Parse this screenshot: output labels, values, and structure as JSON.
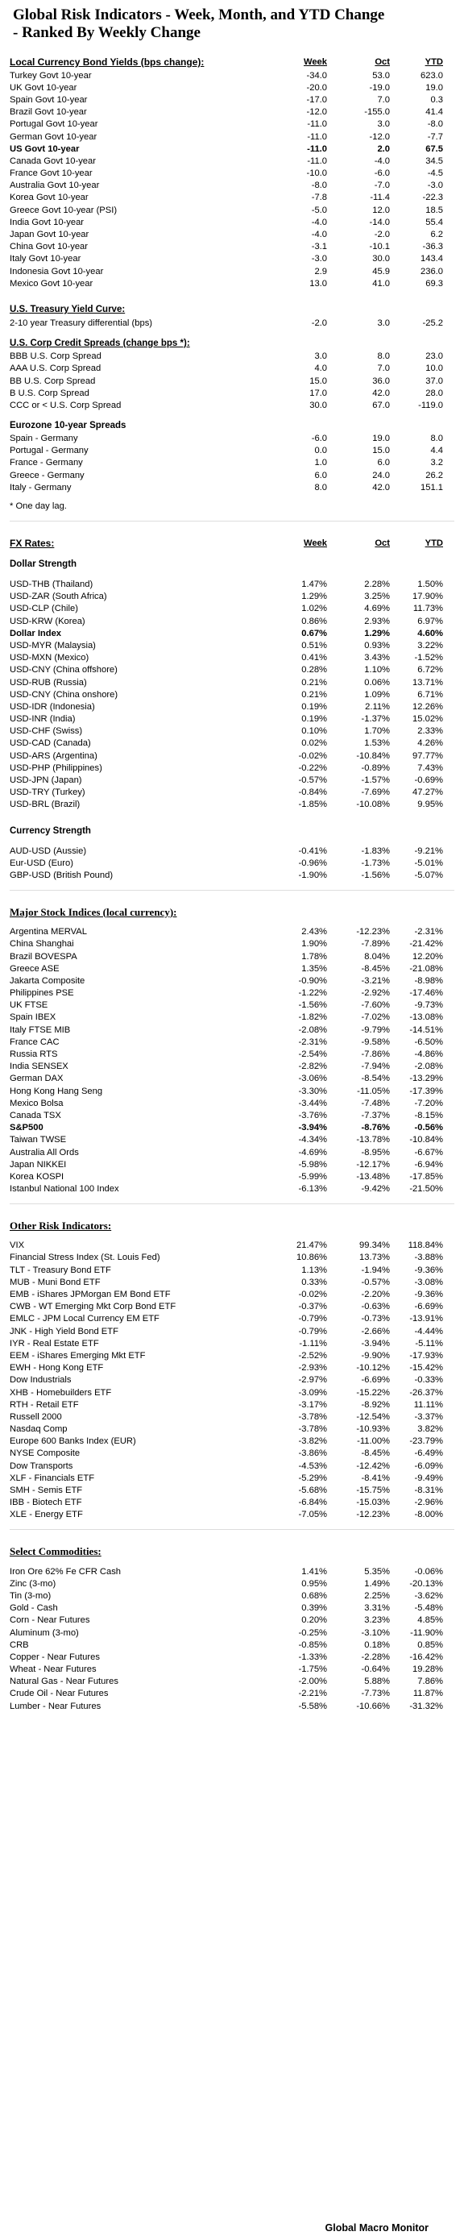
{
  "title_line1": "Global Risk Indicators - Week, Month, and YTD Change",
  "title_line2": "- Ranked By Weekly Change",
  "col_week": "Week",
  "col_oct": "Oct",
  "col_ytd": "YTD",
  "bonds_header": "Local Currency Bond Yields (bps change):",
  "bonds": [
    [
      "Turkey Govt 10-year",
      "-34.0",
      "53.0",
      "623.0"
    ],
    [
      "UK Govt 10-year",
      "-20.0",
      "-19.0",
      "19.0"
    ],
    [
      "Spain Govt 10-year",
      "-17.0",
      "7.0",
      "0.3"
    ],
    [
      "Brazil Govt 10-year",
      "-12.0",
      "-155.0",
      "41.4"
    ],
    [
      "Portugal Govt 10-year",
      "-11.0",
      "3.0",
      "-8.0"
    ],
    [
      "German Govt 10-year",
      "-11.0",
      "-12.0",
      "-7.7"
    ],
    [
      "US Govt 10-year",
      "-11.0",
      "2.0",
      "67.5"
    ],
    [
      "Canada Govt 10-year",
      "-11.0",
      "-4.0",
      "34.5"
    ],
    [
      "France Govt 10-year",
      "-10.0",
      "-6.0",
      "-4.5"
    ],
    [
      "Australia Govt 10-year",
      "-8.0",
      "-7.0",
      "-3.0"
    ],
    [
      "Korea Govt 10-year",
      "-7.8",
      "-11.4",
      "-22.3"
    ],
    [
      "Greece Govt 10-year (PSI)",
      "-5.0",
      "12.0",
      "18.5"
    ],
    [
      "India Govt 10-year",
      "-4.0",
      "-14.0",
      "55.4"
    ],
    [
      "Japan Govt 10-year",
      "-4.0",
      "-2.0",
      "6.2"
    ],
    [
      "China Govt 10-year",
      "-3.1",
      "-10.1",
      "-36.3"
    ],
    [
      "Italy Govt 10-year",
      "-3.0",
      "30.0",
      "143.4"
    ],
    [
      "Indonesia Govt 10-year",
      "2.9",
      "45.9",
      "236.0"
    ],
    [
      "Mexico Govt 10-year",
      "13.0",
      "41.0",
      "69.3"
    ]
  ],
  "curve_header": "U.S. Treasury Yield Curve:",
  "curve": [
    [
      "2-10 year Treasury differential (bps)",
      "-2.0",
      "3.0",
      "-25.2"
    ]
  ],
  "corp_header": "U.S. Corp Credit Spreads (change bps *):",
  "corp": [
    [
      "BBB U.S. Corp Spread",
      "3.0",
      "8.0",
      "23.0"
    ],
    [
      "AAA U.S. Corp Spread",
      "4.0",
      "7.0",
      "10.0"
    ],
    [
      "BB U.S. Corp Spread",
      "15.0",
      "36.0",
      "37.0"
    ],
    [
      "B U.S. Corp Spread",
      "17.0",
      "42.0",
      "28.0"
    ],
    [
      "CCC or < U.S. Corp Spread",
      "30.0",
      "67.0",
      "-119.0"
    ]
  ],
  "euro_header": "Eurozone 10-year Spreads",
  "euro": [
    [
      "Spain - Germany",
      "-6.0",
      "19.0",
      "8.0"
    ],
    [
      "Portugal - Germany",
      "0.0",
      "15.0",
      "4.4"
    ],
    [
      "France - Germany",
      "1.0",
      "6.0",
      "3.2"
    ],
    [
      "Greece - Germany",
      "6.0",
      "24.0",
      "26.2"
    ],
    [
      "Italy - Germany",
      "8.0",
      "42.0",
      "151.1"
    ]
  ],
  "note": "* One day lag.",
  "fx_header": "FX Rates:",
  "dollar_strength": "Dollar Strength",
  "fx": [
    [
      "USD-THB (Thailand)",
      "1.47%",
      "2.28%",
      "1.50%"
    ],
    [
      "USD-ZAR (South Africa)",
      "1.29%",
      "3.25%",
      "17.90%"
    ],
    [
      "USD-CLP (Chile)",
      "1.02%",
      "4.69%",
      "11.73%"
    ],
    [
      "USD-KRW (Korea)",
      "0.86%",
      "2.93%",
      "6.97%"
    ],
    [
      "Dollar Index",
      "0.67%",
      "1.29%",
      "4.60%"
    ],
    [
      "USD-MYR (Malaysia)",
      "0.51%",
      "0.93%",
      "3.22%"
    ],
    [
      "USD-MXN  (Mexico)",
      "0.41%",
      "3.43%",
      "-1.52%"
    ],
    [
      "USD-CNY (China offshore)",
      "0.28%",
      "1.10%",
      "6.72%"
    ],
    [
      "USD-RUB (Russia)",
      "0.21%",
      "0.06%",
      "13.71%"
    ],
    [
      "USD-CNY (China onshore)",
      "0.21%",
      "1.09%",
      "6.71%"
    ],
    [
      "USD-IDR (Indonesia)",
      "0.19%",
      "2.11%",
      "12.26%"
    ],
    [
      "USD-INR (India)",
      "0.19%",
      "-1.37%",
      "15.02%"
    ],
    [
      "USD-CHF (Swiss)",
      "0.10%",
      "1.70%",
      "2.33%"
    ],
    [
      "USD-CAD (Canada)",
      "0.02%",
      "1.53%",
      "4.26%"
    ],
    [
      "USD-ARS (Argentina)",
      "-0.02%",
      "-10.84%",
      "97.77%"
    ],
    [
      "USD-PHP (Philippines)",
      "-0.22%",
      "-0.89%",
      "7.43%"
    ],
    [
      "USD-JPN (Japan)",
      "-0.57%",
      "-1.57%",
      "-0.69%"
    ],
    [
      "USD-TRY (Turkey)",
      "-0.84%",
      "-7.69%",
      "47.27%"
    ],
    [
      "USD-BRL (Brazil)",
      "-1.85%",
      "-10.08%",
      "9.95%"
    ]
  ],
  "currency_strength": "Currency Strength",
  "fx2": [
    [
      "AUD-USD (Aussie)",
      "-0.41%",
      "-1.83%",
      "-9.21%"
    ],
    [
      "Eur-USD (Euro)",
      "-0.96%",
      "-1.73%",
      "-5.01%"
    ],
    [
      "GBP-USD (British Pound)",
      "-1.90%",
      "-1.56%",
      "-5.07%"
    ]
  ],
  "stocks_header": "Major Stock Indices (local currency):",
  "stocks": [
    [
      "Argentina MERVAL",
      "2.43%",
      "-12.23%",
      "-2.31%"
    ],
    [
      "China Shanghai",
      "1.90%",
      "-7.89%",
      "-21.42%"
    ],
    [
      "Brazil BOVESPA",
      "1.78%",
      "8.04%",
      "12.20%"
    ],
    [
      "Greece ASE",
      "1.35%",
      "-8.45%",
      "-21.08%"
    ],
    [
      "Jakarta Composite",
      "-0.90%",
      "-3.21%",
      "-8.98%"
    ],
    [
      "Philippines PSE",
      "-1.22%",
      "-2.92%",
      "-17.46%"
    ],
    [
      "UK FTSE",
      "-1.56%",
      "-7.60%",
      "-9.73%"
    ],
    [
      "Spain IBEX",
      "-1.82%",
      "-7.02%",
      "-13.08%"
    ],
    [
      "Italy FTSE MIB",
      "-2.08%",
      "-9.79%",
      "-14.51%"
    ],
    [
      "France CAC",
      "-2.31%",
      "-9.58%",
      "-6.50%"
    ],
    [
      "Russia RTS",
      "-2.54%",
      "-7.86%",
      "-4.86%"
    ],
    [
      "India SENSEX",
      "-2.82%",
      "-7.94%",
      "-2.08%"
    ],
    [
      "German DAX",
      "-3.06%",
      "-8.54%",
      "-13.29%"
    ],
    [
      "Hong Kong Hang Seng",
      "-3.30%",
      "-11.05%",
      "-17.39%"
    ],
    [
      "Mexico Bolsa",
      "-3.44%",
      "-7.48%",
      "-7.20%"
    ],
    [
      "Canada TSX",
      "-3.76%",
      "-7.37%",
      "-8.15%"
    ],
    [
      "S&P500",
      "-3.94%",
      "-8.76%",
      "-0.56%"
    ],
    [
      "Taiwan TWSE",
      "-4.34%",
      "-13.78%",
      "-10.84%"
    ],
    [
      "Australia All Ords",
      "-4.69%",
      "-8.95%",
      "-6.67%"
    ],
    [
      "Japan NIKKEI",
      "-5.98%",
      "-12.17%",
      "-6.94%"
    ],
    [
      "Korea KOSPI",
      "-5.99%",
      "-13.48%",
      "-17.85%"
    ],
    [
      "Istanbul National 100 Index",
      "-6.13%",
      "-9.42%",
      "-21.50%"
    ]
  ],
  "risk_header": "Other Risk Indicators:",
  "risk": [
    [
      "VIX",
      "21.47%",
      "99.34%",
      "118.84%"
    ],
    [
      "Financial Stress Index (St. Louis Fed)",
      "10.86%",
      "13.73%",
      "-3.88%"
    ],
    [
      "TLT - Treasury Bond ETF",
      "1.13%",
      "-1.94%",
      "-9.36%"
    ],
    [
      "MUB - Muni Bond ETF",
      "0.33%",
      "-0.57%",
      "-3.08%"
    ],
    [
      "EMB - iShares JPMorgan EM Bond ETF",
      "-0.02%",
      "-2.20%",
      "-9.36%"
    ],
    [
      "CWB - WT Emerging Mkt Corp Bond ETF",
      "-0.37%",
      "-0.63%",
      "-6.69%"
    ],
    [
      "EMLC - JPM Local Currency EM ETF",
      "-0.79%",
      "-0.73%",
      "-13.91%"
    ],
    [
      "JNK - High Yield Bond ETF",
      "-0.79%",
      "-2.66%",
      "-4.44%"
    ],
    [
      "IYR - Real Estate ETF",
      "-1.11%",
      "-3.94%",
      "-5.11%"
    ],
    [
      "EEM - iShares Emerging Mkt ETF",
      "-2.52%",
      "-9.90%",
      "-17.93%"
    ],
    [
      "EWH - Hong Kong ETF",
      "-2.93%",
      "-10.12%",
      "-15.42%"
    ],
    [
      "Dow Industrials",
      "-2.97%",
      "-6.69%",
      "-0.33%"
    ],
    [
      "XHB - Homebuilders ETF",
      "-3.09%",
      "-15.22%",
      "-26.37%"
    ],
    [
      "RTH - Retail ETF",
      "-3.17%",
      "-8.92%",
      "11.11%"
    ],
    [
      "Russell 2000",
      "-3.78%",
      "-12.54%",
      "-3.37%"
    ],
    [
      "Nasdaq Comp",
      "-3.78%",
      "-10.93%",
      "3.82%"
    ],
    [
      "Europe 600 Banks Index (EUR)",
      "-3.82%",
      "-11.00%",
      "-23.79%"
    ],
    [
      "NYSE Composite",
      "-3.86%",
      "-8.45%",
      "-6.49%"
    ],
    [
      "Dow Transports",
      "-4.53%",
      "-12.42%",
      "-6.09%"
    ],
    [
      "XLF - Financials ETF",
      "-5.29%",
      "-8.41%",
      "-9.49%"
    ],
    [
      "SMH - Semis ETF",
      "-5.68%",
      "-15.75%",
      "-8.31%"
    ],
    [
      "IBB - Biotech ETF",
      "-6.84%",
      "-15.03%",
      "-2.96%"
    ],
    [
      "XLE - Energy ETF",
      "-7.05%",
      "-12.23%",
      "-8.00%"
    ]
  ],
  "comm_header": "Select Commodities:",
  "comm": [
    [
      "Iron Ore 62% Fe CFR Cash",
      "1.41%",
      "5.35%",
      "-0.06%"
    ],
    [
      "Zinc (3-mo)",
      "0.95%",
      "1.49%",
      "-20.13%"
    ],
    [
      "Tin (3-mo)",
      "0.68%",
      "2.25%",
      "-3.62%"
    ],
    [
      "Gold - Cash",
      "0.39%",
      "3.31%",
      "-5.48%"
    ],
    [
      "Corn - Near Futures",
      "0.20%",
      "3.23%",
      "4.85%"
    ],
    [
      "Aluminum (3-mo)",
      "-0.25%",
      "-3.10%",
      "-11.90%"
    ],
    [
      "CRB",
      "-0.85%",
      "0.18%",
      "0.85%"
    ],
    [
      "Copper - Near Futures",
      "-1.33%",
      "-2.28%",
      "-16.42%"
    ],
    [
      "Wheat - Near Futures",
      "-1.75%",
      "-0.64%",
      "19.28%"
    ],
    [
      "Natural Gas - Near Futures",
      "-2.00%",
      "5.88%",
      "7.86%"
    ],
    [
      "Crude Oil - Near Futures",
      "-2.21%",
      "-7.73%",
      "11.87%"
    ],
    [
      "Lumber - Near Futures",
      "-5.58%",
      "-10.66%",
      "-31.32%"
    ]
  ],
  "footer": "Global Macro Monitor"
}
